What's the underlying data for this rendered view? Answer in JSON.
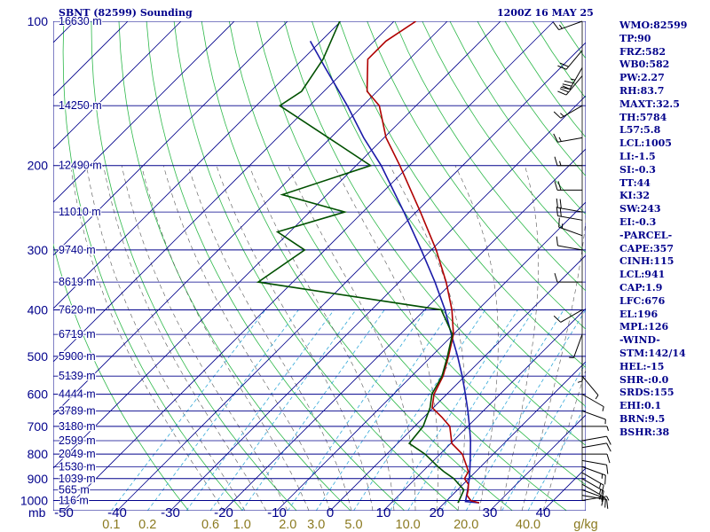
{
  "header": {
    "station": "SBNT (82599) Sounding",
    "time": "1200Z 16 MAY 25"
  },
  "indices": [
    "WMO:82599",
    "TP:90",
    "FRZ:582",
    "WB0:582",
    "PW:2.27",
    "RH:83.7",
    "MAXT:32.5",
    "TH:5784",
    "L57:5.8",
    "LCL:1005",
    "LI:-1.5",
    "SI:-0.3",
    "TT:44",
    "KI:32",
    "SW:243",
    "EI:-0.3",
    "-PARCEL-",
    "CAPE:357",
    "CINH:115",
    "LCL:941",
    "CAP:1.9",
    "LFC:676",
    "EL:196",
    "MPL:126",
    "-WIND-",
    "STM:142/14",
    "HEL:-15",
    "SHR-:0.0",
    "SRDS:155",
    "EHI:0.1",
    "BRN:9.5",
    "BSHR:38"
  ],
  "colors": {
    "isobar": "#00008b",
    "isotherm": "#00008b",
    "dry_adiabat": "#2db84a",
    "moist_adiabat": "#555555",
    "mixing_ratio": "#33a8d8",
    "temperature": "#b00000",
    "dewpoint": "#005000",
    "parcel": "#1a1aa8",
    "mixing_ratio_label": "#8b7a20",
    "text": "#00008b"
  },
  "chart_data": {
    "type": "skew-t",
    "title": "SBNT (82599) Sounding",
    "subtitle": "1200Z 16 MAY 25",
    "xlabel": "",
    "ylabel": "mb",
    "pressure_levels": [
      100,
      200,
      300,
      400,
      500,
      600,
      700,
      800,
      900,
      1000
    ],
    "pressure_labels": [
      "100",
      "200",
      "300",
      "400",
      "500",
      "600",
      "700",
      "800",
      "900",
      "1000"
    ],
    "temperature_ticks": [
      -50,
      -40,
      -30,
      -20,
      -10,
      0,
      10,
      20,
      30,
      40
    ],
    "temperature_tick_labels": [
      "-50",
      "-40",
      "-30",
      "-20",
      "-10",
      "0",
      "10",
      "20",
      "30",
      "40"
    ],
    "mixing_ratio_labels": [
      "0.1",
      "0.2",
      "0.6",
      "1.0",
      "2.0",
      "3.0",
      "5.0",
      "10.0",
      "20.0",
      "40.0"
    ],
    "mixing_ratio_unit": "g/kg",
    "height_labels": [
      {
        "p": 100,
        "label": "16630 m"
      },
      {
        "p": 150,
        "label": "14250 m"
      },
      {
        "p": 200,
        "label": "12490 m"
      },
      {
        "p": 250,
        "label": "11010 m"
      },
      {
        "p": 300,
        "label": "9740 m"
      },
      {
        "p": 350,
        "label": "8619 m"
      },
      {
        "p": 400,
        "label": "7620 m"
      },
      {
        "p": 450,
        "label": "6719 m"
      },
      {
        "p": 500,
        "label": "5900 m"
      },
      {
        "p": 550,
        "label": "5139 m"
      },
      {
        "p": 600,
        "label": "4444 m"
      },
      {
        "p": 650,
        "label": "3789 m"
      },
      {
        "p": 700,
        "label": "3180 m"
      },
      {
        "p": 750,
        "label": "2599 m"
      },
      {
        "p": 800,
        "label": "2049 m"
      },
      {
        "p": 850,
        "label": "1530 m"
      },
      {
        "p": 900,
        "label": "1039 m"
      },
      {
        "p": 950,
        "label": "565 m"
      },
      {
        "p": 1000,
        "label": "116 m"
      }
    ],
    "temperature": [
      {
        "p": 1011,
        "t": 26.5
      },
      {
        "p": 1000,
        "t": 24.5
      },
      {
        "p": 975,
        "t": 22.8
      },
      {
        "p": 950,
        "t": 22.0
      },
      {
        "p": 925,
        "t": 21.0
      },
      {
        "p": 900,
        "t": 19.2
      },
      {
        "p": 870,
        "t": 18.6
      },
      {
        "p": 850,
        "t": 17.4
      },
      {
        "p": 800,
        "t": 14.2
      },
      {
        "p": 760,
        "t": 10.2
      },
      {
        "p": 700,
        "t": 6.6
      },
      {
        "p": 670,
        "t": 3.4
      },
      {
        "p": 640,
        "t": -0.2
      },
      {
        "p": 600,
        "t": -2.4
      },
      {
        "p": 550,
        "t": -4.1
      },
      {
        "p": 500,
        "t": -6.8
      },
      {
        "p": 450,
        "t": -10.0
      },
      {
        "p": 400,
        "t": -14.9
      },
      {
        "p": 350,
        "t": -21.2
      },
      {
        "p": 300,
        "t": -29.1
      },
      {
        "p": 250,
        "t": -39.2
      },
      {
        "p": 200,
        "t": -51.8
      },
      {
        "p": 175,
        "t": -59.6
      },
      {
        "p": 150,
        "t": -66.9
      },
      {
        "p": 140,
        "t": -71.9
      },
      {
        "p": 120,
        "t": -77.8
      },
      {
        "p": 110,
        "t": -77.8
      },
      {
        "p": 100,
        "t": -75.9
      }
    ],
    "dewpoint": [
      {
        "p": 1011,
        "t": 22.5
      },
      {
        "p": 1000,
        "t": 22.3
      },
      {
        "p": 950,
        "t": 21.2
      },
      {
        "p": 900,
        "t": 17.2
      },
      {
        "p": 870,
        "t": 14.0
      },
      {
        "p": 850,
        "t": 12.0
      },
      {
        "p": 800,
        "t": 7.2
      },
      {
        "p": 760,
        "t": 2.2
      },
      {
        "p": 700,
        "t": 1.6
      },
      {
        "p": 640,
        "t": -0.6
      },
      {
        "p": 600,
        "t": -2.8
      },
      {
        "p": 550,
        "t": -4.3
      },
      {
        "p": 500,
        "t": -7.0
      },
      {
        "p": 450,
        "t": -10.2
      },
      {
        "p": 400,
        "t": -16.9
      },
      {
        "p": 350,
        "t": -56.5
      },
      {
        "p": 300,
        "t": -53.8
      },
      {
        "p": 275,
        "t": -62.3
      },
      {
        "p": 250,
        "t": -53.4
      },
      {
        "p": 230,
        "t": -68.4
      },
      {
        "p": 200,
        "t": -57.3
      },
      {
        "p": 175,
        "t": -70.4
      },
      {
        "p": 150,
        "t": -85.6
      },
      {
        "p": 140,
        "t": -84.2
      },
      {
        "p": 120,
        "t": -86.2
      },
      {
        "p": 100,
        "t": -90.2
      }
    ],
    "parcel": [
      {
        "p": 1011,
        "t": 26.5
      },
      {
        "p": 1005,
        "t": 23.7
      },
      {
        "p": 950,
        "t": 21.9
      },
      {
        "p": 900,
        "t": 20.1
      },
      {
        "p": 850,
        "t": 18.0
      },
      {
        "p": 800,
        "t": 15.7
      },
      {
        "p": 750,
        "t": 13.2
      },
      {
        "p": 700,
        "t": 10.3
      },
      {
        "p": 650,
        "t": 7.1
      },
      {
        "p": 600,
        "t": 3.5
      },
      {
        "p": 550,
        "t": -0.5
      },
      {
        "p": 500,
        "t": -5.1
      },
      {
        "p": 450,
        "t": -10.4
      },
      {
        "p": 400,
        "t": -16.2
      },
      {
        "p": 350,
        "t": -23.3
      },
      {
        "p": 300,
        "t": -31.9
      },
      {
        "p": 250,
        "t": -42.3
      },
      {
        "p": 200,
        "t": -55.3
      },
      {
        "p": 175,
        "t": -63.8
      },
      {
        "p": 150,
        "t": -72.9
      },
      {
        "p": 125,
        "t": -84.2
      },
      {
        "p": 110,
        "t": -92.0
      }
    ],
    "wind_barbs": [
      {
        "p": 1000,
        "dir": 80,
        "spd": 5
      },
      {
        "p": 975,
        "dir": 100,
        "spd": 10
      },
      {
        "p": 950,
        "dir": 110,
        "spd": 15
      },
      {
        "p": 925,
        "dir": 120,
        "spd": 15
      },
      {
        "p": 900,
        "dir": 120,
        "spd": 15
      },
      {
        "p": 875,
        "dir": 120,
        "spd": 15
      },
      {
        "p": 850,
        "dir": 110,
        "spd": 15
      },
      {
        "p": 825,
        "dir": 100,
        "spd": 10
      },
      {
        "p": 800,
        "dir": 90,
        "spd": 10
      },
      {
        "p": 775,
        "dir": 80,
        "spd": 10
      },
      {
        "p": 750,
        "dir": 80,
        "spd": 10
      },
      {
        "p": 700,
        "dir": 90,
        "spd": 5
      },
      {
        "p": 650,
        "dir": 110,
        "spd": 5
      },
      {
        "p": 600,
        "dir": 120,
        "spd": 5
      },
      {
        "p": 550,
        "dir": 140,
        "spd": 5
      },
      {
        "p": 500,
        "dir": 180,
        "spd": 5
      },
      {
        "p": 450,
        "dir": 200,
        "spd": 5
      },
      {
        "p": 400,
        "dir": 240,
        "spd": 10
      },
      {
        "p": 350,
        "dir": 270,
        "spd": 10
      },
      {
        "p": 300,
        "dir": 280,
        "spd": 10
      },
      {
        "p": 280,
        "dir": 290,
        "spd": 15
      },
      {
        "p": 260,
        "dir": 280,
        "spd": 20
      },
      {
        "p": 250,
        "dir": 280,
        "spd": 20
      },
      {
        "p": 225,
        "dir": 270,
        "spd": 20
      },
      {
        "p": 200,
        "dir": 270,
        "spd": 15
      },
      {
        "p": 175,
        "dir": 260,
        "spd": 15
      },
      {
        "p": 150,
        "dir": 240,
        "spd": 15
      },
      {
        "p": 130,
        "dir": 220,
        "spd": 30
      },
      {
        "p": 125,
        "dir": 210,
        "spd": 35
      },
      {
        "p": 115,
        "dir": 220,
        "spd": 20
      },
      {
        "p": 100,
        "dir": 250,
        "spd": 15
      }
    ],
    "ylim": [
      1050,
      100
    ],
    "xlim": [
      -50,
      50
    ],
    "grid": true,
    "legend": "none"
  }
}
